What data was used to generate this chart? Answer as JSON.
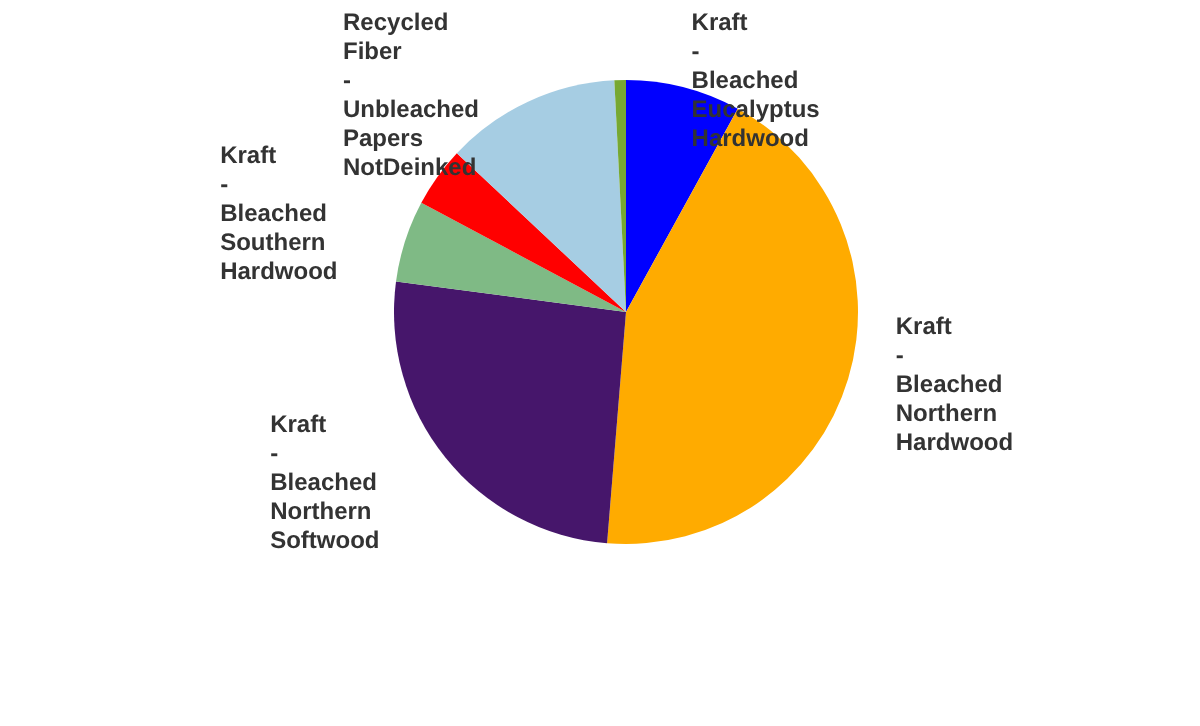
{
  "chart_data": {
    "type": "pie",
    "categories": [
      "Kraft - Bleached Eucalyptus Hardwood",
      "Kraft - Bleached Northern Hardwood",
      "Kraft - Bleached Northern Softwood",
      "Kraft - Bleached Southern Hardwood",
      null,
      "Recycled Fiber - Unbleached Papers NotDeinked",
      null
    ],
    "values": [
      8,
      43.3,
      25.8,
      5.7,
      4.2,
      12.2,
      0.8
    ],
    "colors": [
      "#0000ff",
      "#ffab00",
      "#46166b",
      "#7fba85",
      "#ff0000",
      "#a6cde3",
      "#77a832"
    ],
    "legend": false
  }
}
